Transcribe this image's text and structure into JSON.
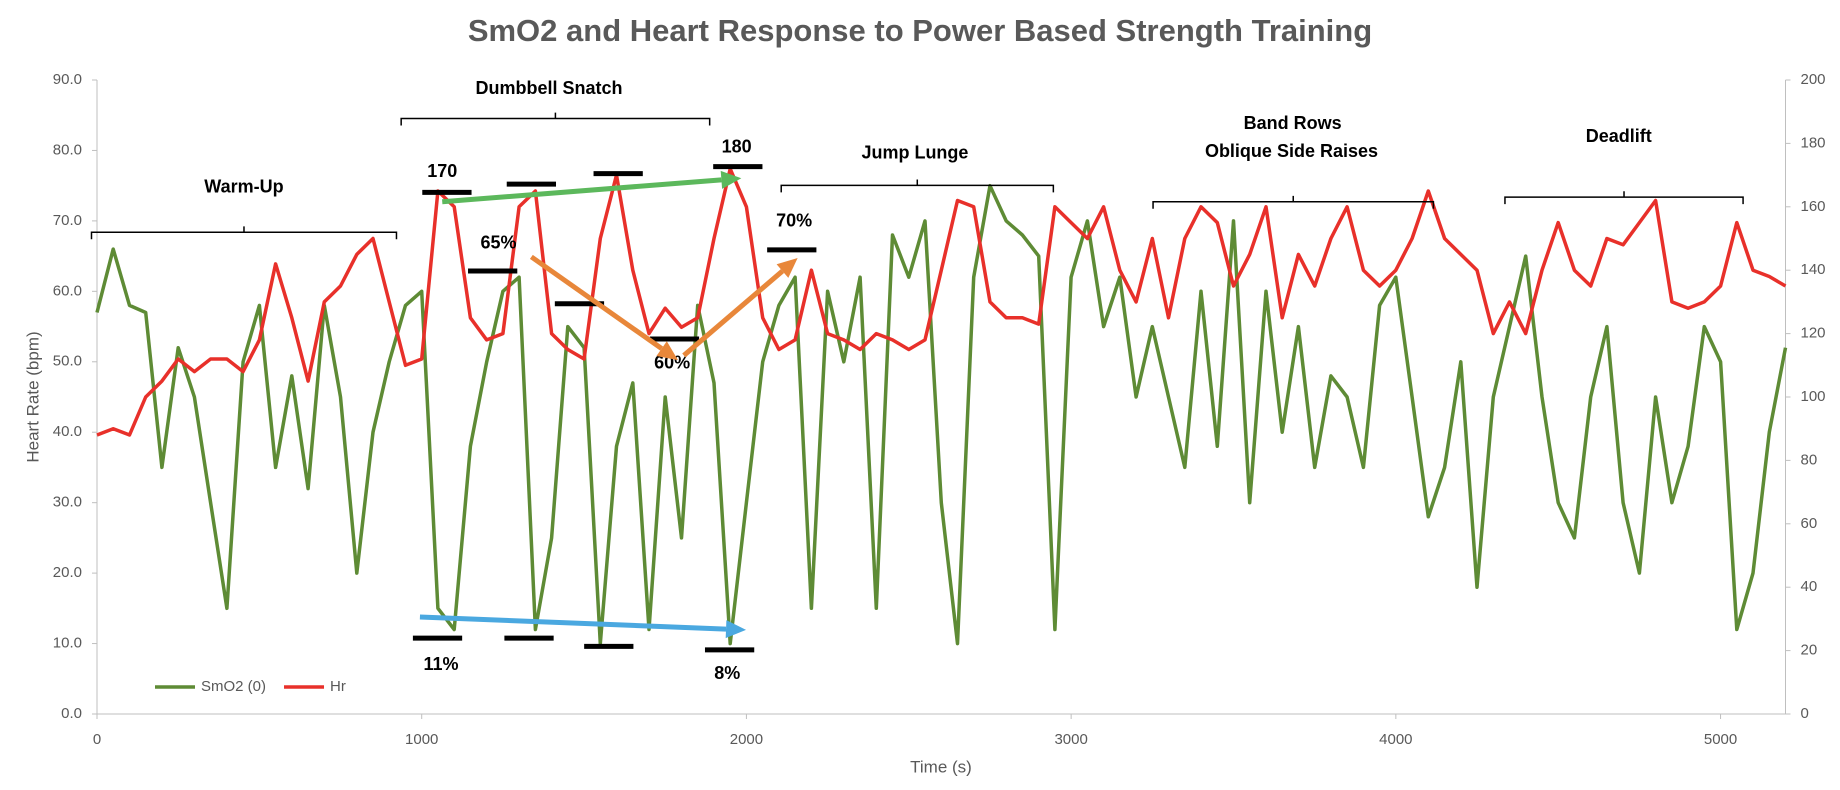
{
  "chart_data": {
    "type": "line",
    "title": "SmO2  and Heart Response to Power Based Strength Training",
    "xlabel": "Time (s)",
    "ylabel": "Heart Rate (bpm)",
    "x": [
      0,
      50,
      100,
      150,
      200,
      250,
      300,
      350,
      400,
      450,
      500,
      550,
      600,
      650,
      700,
      750,
      800,
      850,
      900,
      950,
      1000,
      1050,
      1100,
      1150,
      1200,
      1250,
      1300,
      1350,
      1400,
      1450,
      1500,
      1550,
      1600,
      1650,
      1700,
      1750,
      1800,
      1850,
      1900,
      1950,
      2000,
      2050,
      2100,
      2150,
      2200,
      2250,
      2300,
      2350,
      2400,
      2450,
      2500,
      2550,
      2600,
      2650,
      2700,
      2750,
      2800,
      2850,
      2900,
      2950,
      3000,
      3050,
      3100,
      3150,
      3200,
      3250,
      3300,
      3350,
      3400,
      3450,
      3500,
      3550,
      3600,
      3650,
      3700,
      3750,
      3800,
      3850,
      3900,
      3950,
      4000,
      4050,
      4100,
      4150,
      4200,
      4250,
      4300,
      4350,
      4400,
      4450,
      4500,
      4550,
      4600,
      4650,
      4700,
      4750,
      4800,
      4850,
      4900,
      4950,
      5000,
      5050,
      5100,
      5150,
      5200
    ],
    "series": [
      {
        "name": "SmO2 (0)",
        "color": "#5e8b35",
        "axis": "y",
        "values": [
          57,
          66,
          58,
          57,
          35,
          52,
          45,
          30,
          15,
          50,
          58,
          35,
          48,
          32,
          58,
          45,
          20,
          40,
          50,
          58,
          60,
          15,
          12,
          38,
          50,
          60,
          62,
          12,
          25,
          55,
          52,
          10,
          38,
          47,
          12,
          45,
          25,
          58,
          47,
          10,
          30,
          50,
          58,
          62,
          15,
          60,
          50,
          62,
          15,
          68,
          62,
          70,
          30,
          10,
          62,
          75,
          70,
          68,
          65,
          12,
          62,
          70,
          55,
          62,
          45,
          55,
          45,
          35,
          60,
          38,
          70,
          30,
          60,
          40,
          55,
          35,
          48,
          45,
          35,
          58,
          62,
          45,
          28,
          35,
          50,
          18,
          45,
          55,
          65,
          45,
          30,
          25,
          45,
          55,
          30,
          20,
          45,
          30,
          38,
          55,
          50,
          12,
          20,
          40,
          52
        ]
      },
      {
        "name": "Hr",
        "color": "#e8302a",
        "axis": "y2",
        "values": [
          88,
          90,
          88,
          100,
          105,
          112,
          108,
          112,
          112,
          108,
          118,
          142,
          125,
          105,
          130,
          135,
          145,
          150,
          130,
          110,
          112,
          165,
          160,
          125,
          118,
          120,
          160,
          165,
          120,
          115,
          112,
          150,
          170,
          140,
          120,
          128,
          122,
          125,
          150,
          172,
          160,
          125,
          115,
          118,
          140,
          120,
          118,
          115,
          120,
          118,
          115,
          118,
          140,
          162,
          160,
          130,
          125,
          125,
          123,
          160,
          155,
          150,
          160,
          140,
          130,
          150,
          125,
          150,
          160,
          155,
          135,
          145,
          160,
          125,
          145,
          135,
          150,
          160,
          140,
          135,
          140,
          150,
          165,
          150,
          145,
          140,
          120,
          130,
          120,
          140,
          155,
          140,
          135,
          150,
          148,
          155,
          162,
          130,
          128,
          130,
          135,
          155,
          140,
          138,
          135
        ]
      }
    ],
    "xlim": [
      0,
      5200
    ],
    "xticks": [
      0,
      1000,
      2000,
      3000,
      4000,
      5000
    ],
    "ylim": [
      0,
      90
    ],
    "yticks": [
      {
        "value": 0,
        "label": "0.0"
      },
      {
        "value": 10,
        "label": "10.0"
      },
      {
        "value": 20,
        "label": "20.0"
      },
      {
        "value": 30,
        "label": "30.0"
      },
      {
        "value": 40,
        "label": "40.0"
      },
      {
        "value": 50,
        "label": "50.0"
      },
      {
        "value": 60,
        "label": "60.0"
      },
      {
        "value": 70,
        "label": "70.0"
      },
      {
        "value": 80,
        "label": "80.0"
      },
      {
        "value": 90,
        "label": "90.0"
      }
    ],
    "y2lim": [
      0,
      200
    ],
    "y2ticks": [
      0,
      20,
      40,
      60,
      80,
      100,
      120,
      140,
      160,
      180,
      200
    ],
    "legend": "lower left",
    "annotations": [
      "Warm-Up",
      "Dumbbell Snatch",
      "Jump Lunge",
      "Band Rows",
      "Oblique Side Raises",
      "Deadlift",
      "170",
      "180",
      "65%",
      "60%",
      "70%",
      "11%",
      "8%"
    ]
  }
}
